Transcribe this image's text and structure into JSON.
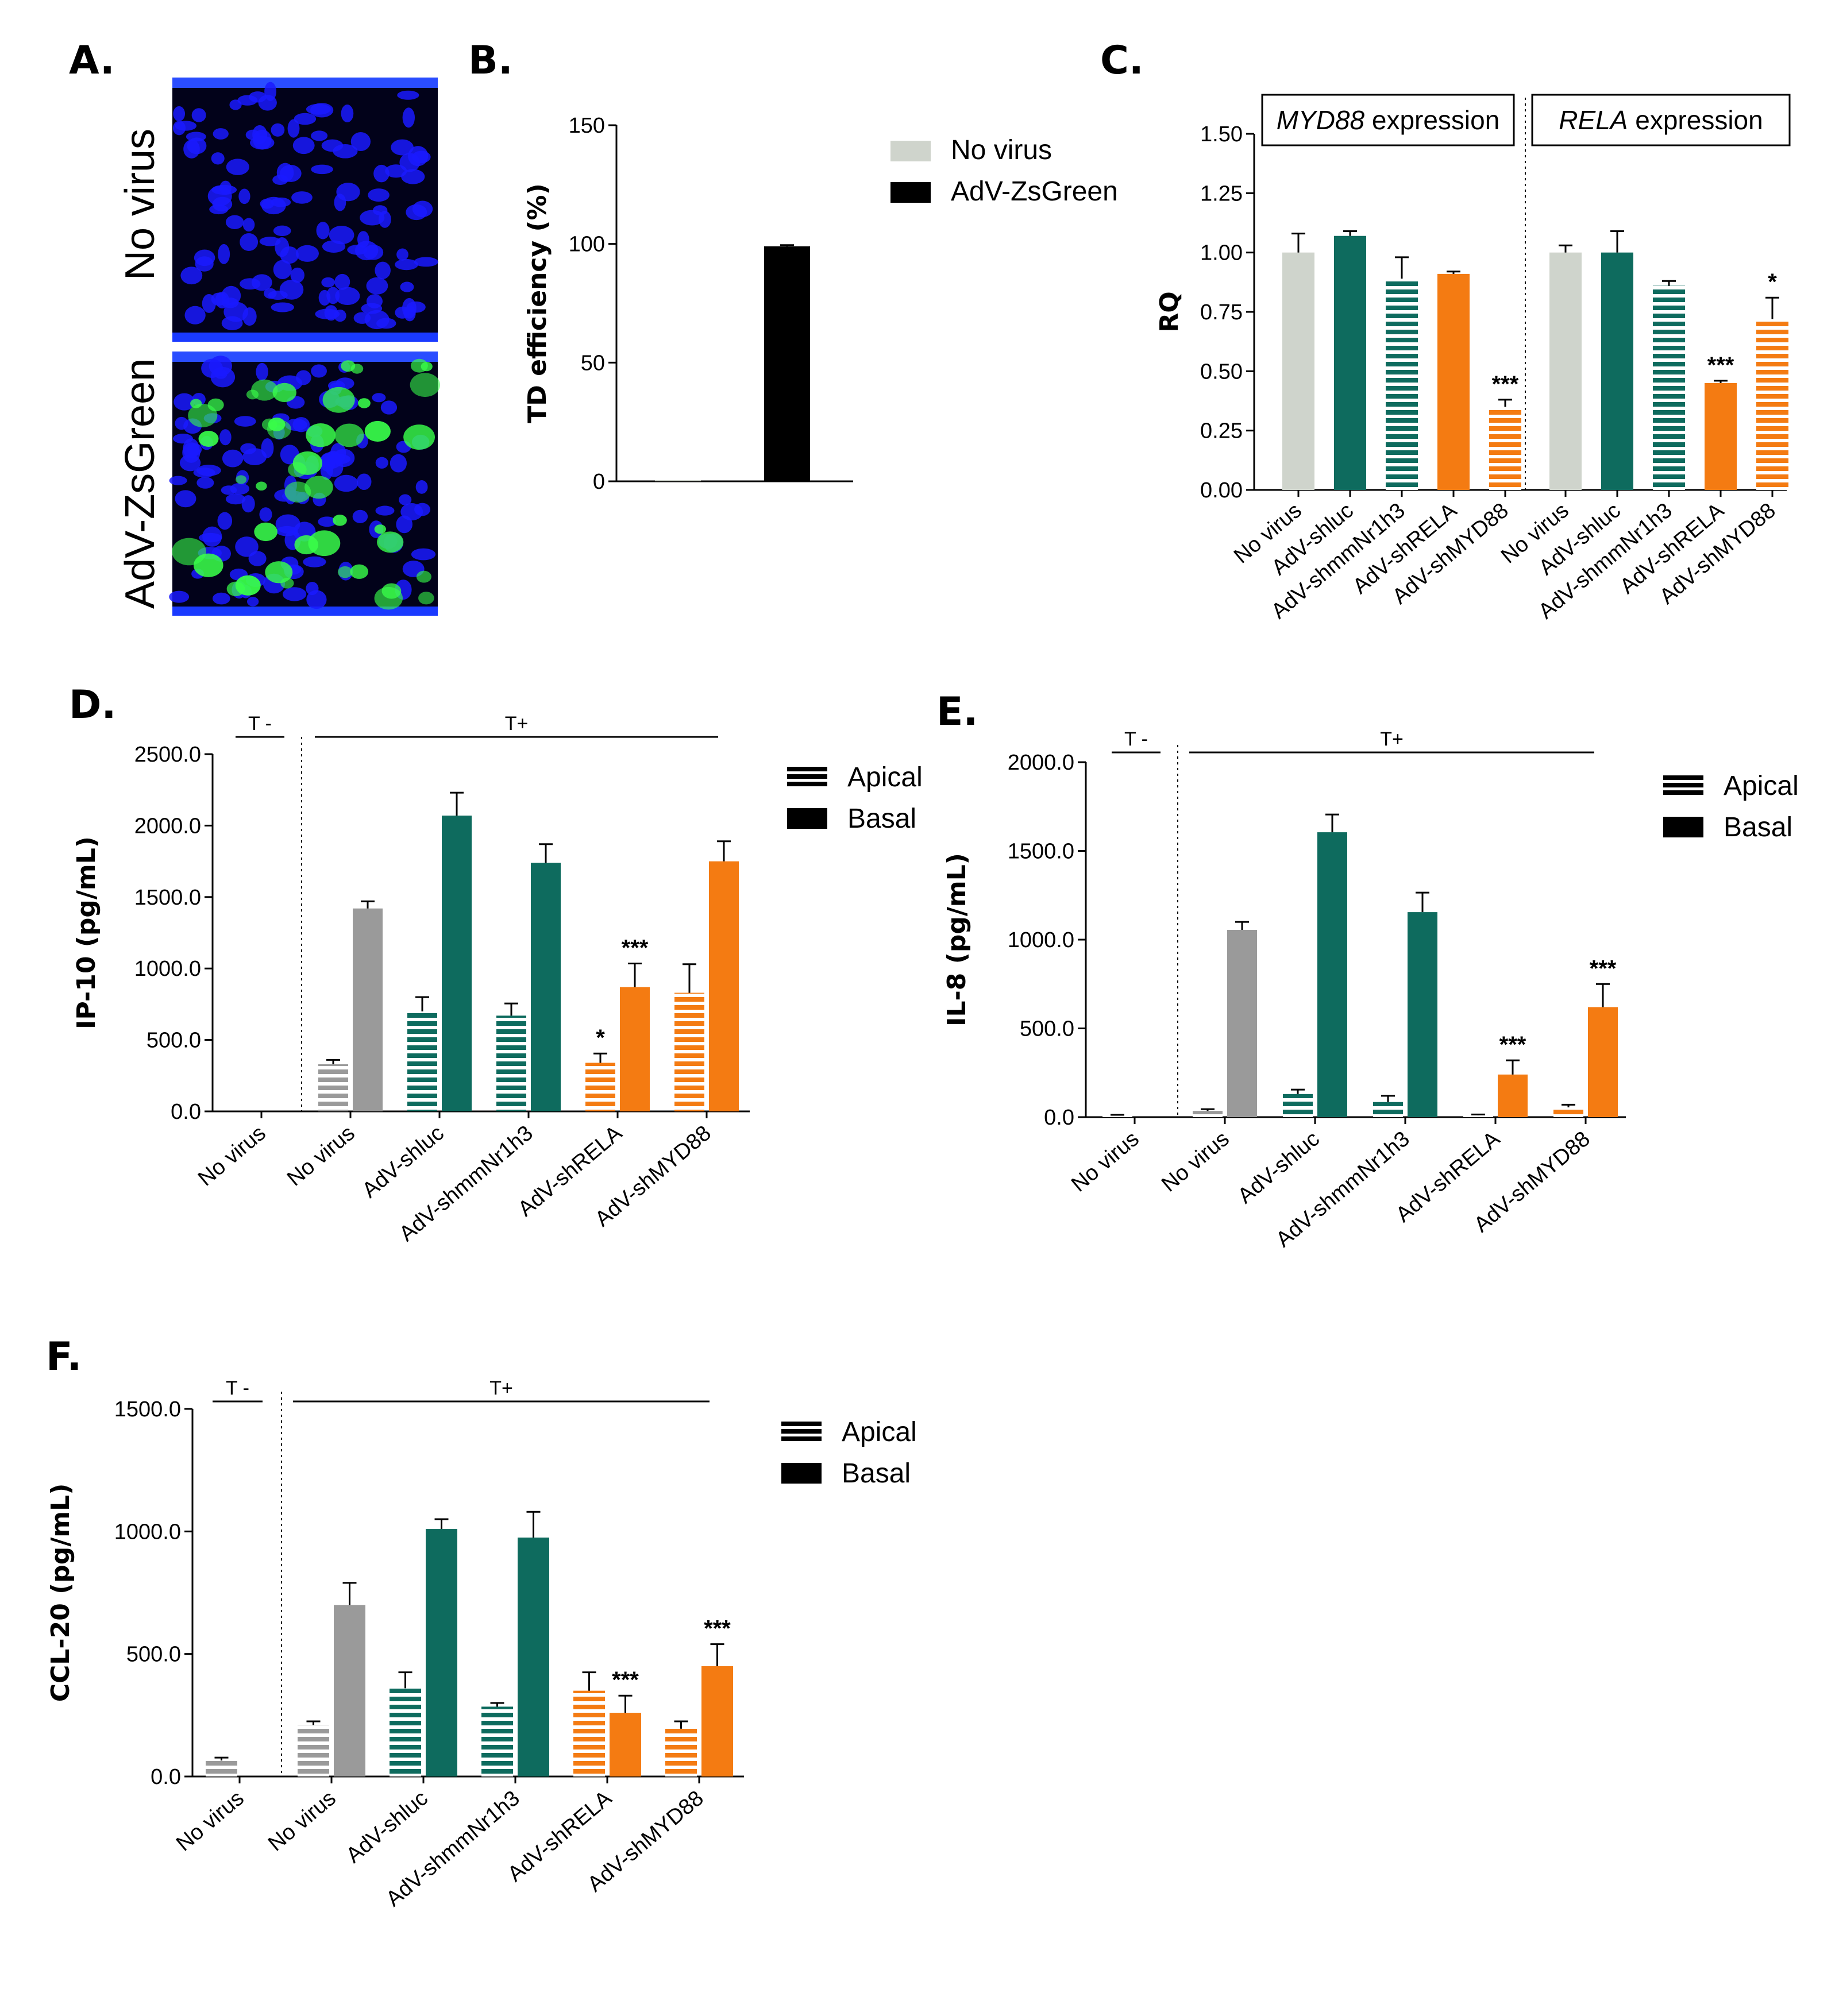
{
  "panels": {
    "A": {
      "letter": "A.",
      "images": [
        {
          "label": "No virus"
        },
        {
          "label": "AdV-ZsGreen"
        }
      ]
    },
    "B": {
      "letter": "B."
    },
    "C": {
      "letter": "C.",
      "box_titles": [
        {
          "gene": "MYD88",
          "suffix": " expression"
        },
        {
          "gene": "RELA",
          "suffix": " expression"
        }
      ]
    },
    "D": {
      "letter": "D."
    },
    "E": {
      "letter": "E."
    },
    "F": {
      "letter": "F."
    }
  },
  "colors": {
    "no_virus_light": "#cfd4cc",
    "grey": "#9a9a9a",
    "teal": "#0e6b5e",
    "orange": "#f47b12",
    "black": "#000000",
    "nuclei_blue": "#1a1aff",
    "zsgreen": "#39ff4a"
  },
  "chart_data": [
    {
      "id": "B",
      "type": "bar",
      "categories": [
        "No virus",
        "AdV-ZsGreen"
      ],
      "values": [
        0.5,
        99
      ],
      "errors": [
        0,
        0.5
      ],
      "ylabel": "TD efficiency  (%)",
      "ylim": [
        0,
        150
      ],
      "yticks": [
        "0",
        "50",
        "100",
        "150"
      ],
      "legend": [
        {
          "label": "No virus",
          "color": "#cfd4cc"
        },
        {
          "label": "AdV-ZsGreen",
          "color": "#000000"
        }
      ],
      "legend_position": "right"
    },
    {
      "id": "C",
      "type": "bar",
      "ylabel": "RQ",
      "ylim": [
        0,
        1.5
      ],
      "yticks": [
        "0.00",
        "0.25",
        "0.50",
        "0.75",
        "1.00",
        "1.25",
        "1.50"
      ],
      "groups": [
        {
          "title": "MYD88 expression",
          "categories": [
            "No virus",
            "AdV-shluc",
            "AdV-shmmNr1h3",
            "AdV-shRELA",
            "AdV-shMYD88"
          ],
          "values": [
            1.0,
            1.07,
            0.89,
            0.91,
            0.35
          ],
          "errors": [
            0.08,
            0.02,
            0.09,
            0.01,
            0.03
          ],
          "sig": [
            "",
            "",
            "",
            "",
            "***"
          ],
          "fills": [
            "light",
            "teal",
            "teal-striped",
            "orange",
            "orange-striped"
          ]
        },
        {
          "title": "RELA expression",
          "categories": [
            "No virus",
            "AdV-shluc",
            "AdV-shmmNr1h3",
            "AdV-shRELA",
            "AdV-shMYD88"
          ],
          "values": [
            1.0,
            1.0,
            0.86,
            0.45,
            0.72
          ],
          "errors": [
            0.03,
            0.09,
            0.02,
            0.01,
            0.09
          ],
          "sig": [
            "",
            "",
            "",
            "***",
            "*"
          ],
          "fills": [
            "light",
            "teal",
            "teal-striped",
            "orange",
            "orange-striped"
          ]
        }
      ]
    },
    {
      "id": "D",
      "type": "bar",
      "ylabel": "IP-10 (pg/mL)",
      "ylim": [
        0,
        2500
      ],
      "yticks": [
        "0.0",
        "500.0",
        "1000.0",
        "1500.0",
        "2000.0",
        "2500.0"
      ],
      "group_labels": [
        "T -",
        "T+"
      ],
      "categories": [
        "No virus",
        "No virus",
        "AdV-shluc",
        "AdV-shmmNr1h3",
        "AdV-shRELA",
        "AdV-shMYD88"
      ],
      "series": [
        {
          "name": "Apical",
          "values": [
            0,
            330,
            700,
            670,
            340,
            830
          ],
          "errors": [
            0,
            30,
            100,
            85,
            65,
            200
          ],
          "sig": [
            "",
            "",
            "",
            "",
            "*",
            ""
          ]
        },
        {
          "name": "Basal",
          "values": [
            0,
            1420,
            2070,
            1740,
            870,
            1750
          ],
          "errors": [
            0,
            50,
            160,
            130,
            165,
            140
          ],
          "sig": [
            "",
            "",
            "",
            "",
            "***",
            ""
          ]
        }
      ],
      "colors": [
        "grey",
        "grey",
        "teal",
        "teal",
        "orange",
        "orange"
      ],
      "legend": [
        "Apical",
        "Basal"
      ]
    },
    {
      "id": "E",
      "type": "bar",
      "ylabel": "IL-8 (pg/mL)",
      "ylim": [
        0,
        2000
      ],
      "yticks": [
        "0.0",
        "500.0",
        "1000.0",
        "1500.0",
        "2000.0"
      ],
      "group_labels": [
        "T -",
        "T+"
      ],
      "categories": [
        "No virus",
        "No virus",
        "AdV-shluc",
        "AdV-shmmNr1h3",
        "AdV-shRELA",
        "AdV-shMYD88"
      ],
      "series": [
        {
          "name": "Apical",
          "values": [
            10,
            35,
            130,
            85,
            10,
            55
          ],
          "errors": [
            3,
            10,
            25,
            35,
            5,
            15
          ],
          "sig": [
            "",
            "",
            "",
            "",
            "",
            ""
          ]
        },
        {
          "name": "Basal",
          "values": [
            0,
            1055,
            1605,
            1155,
            240,
            620
          ],
          "errors": [
            0,
            45,
            100,
            110,
            80,
            130
          ],
          "sig": [
            "",
            "",
            "",
            "",
            "***",
            "***"
          ]
        }
      ],
      "colors": [
        "black",
        "grey",
        "teal",
        "teal",
        "orange",
        "orange"
      ],
      "legend": [
        "Apical",
        "Basal"
      ]
    },
    {
      "id": "F",
      "type": "bar",
      "ylabel": "CCL-20 (pg/mL)",
      "ylim": [
        0,
        1500
      ],
      "yticks": [
        "0.0",
        "500.0",
        "1000.0",
        "1500.0"
      ],
      "group_labels": [
        "T -",
        "T+"
      ],
      "categories": [
        "No virus",
        "No virus",
        "AdV-shluc",
        "AdV-shmmNr1h3",
        "AdV-shRELA",
        "AdV-shMYD88"
      ],
      "series": [
        {
          "name": "Apical",
          "values": [
            65,
            210,
            360,
            285,
            350,
            195
          ],
          "errors": [
            12,
            15,
            65,
            15,
            75,
            30
          ],
          "sig": [
            "",
            "",
            "",
            "",
            "",
            ""
          ]
        },
        {
          "name": "Basal",
          "values": [
            0,
            700,
            1010,
            975,
            260,
            450
          ],
          "errors": [
            0,
            90,
            40,
            105,
            70,
            90
          ],
          "sig": [
            "",
            "",
            "",
            "",
            "***",
            "***"
          ]
        }
      ],
      "colors": [
        "grey",
        "grey",
        "teal",
        "teal",
        "orange",
        "orange"
      ],
      "legend": [
        "Apical",
        "Basal"
      ]
    }
  ]
}
